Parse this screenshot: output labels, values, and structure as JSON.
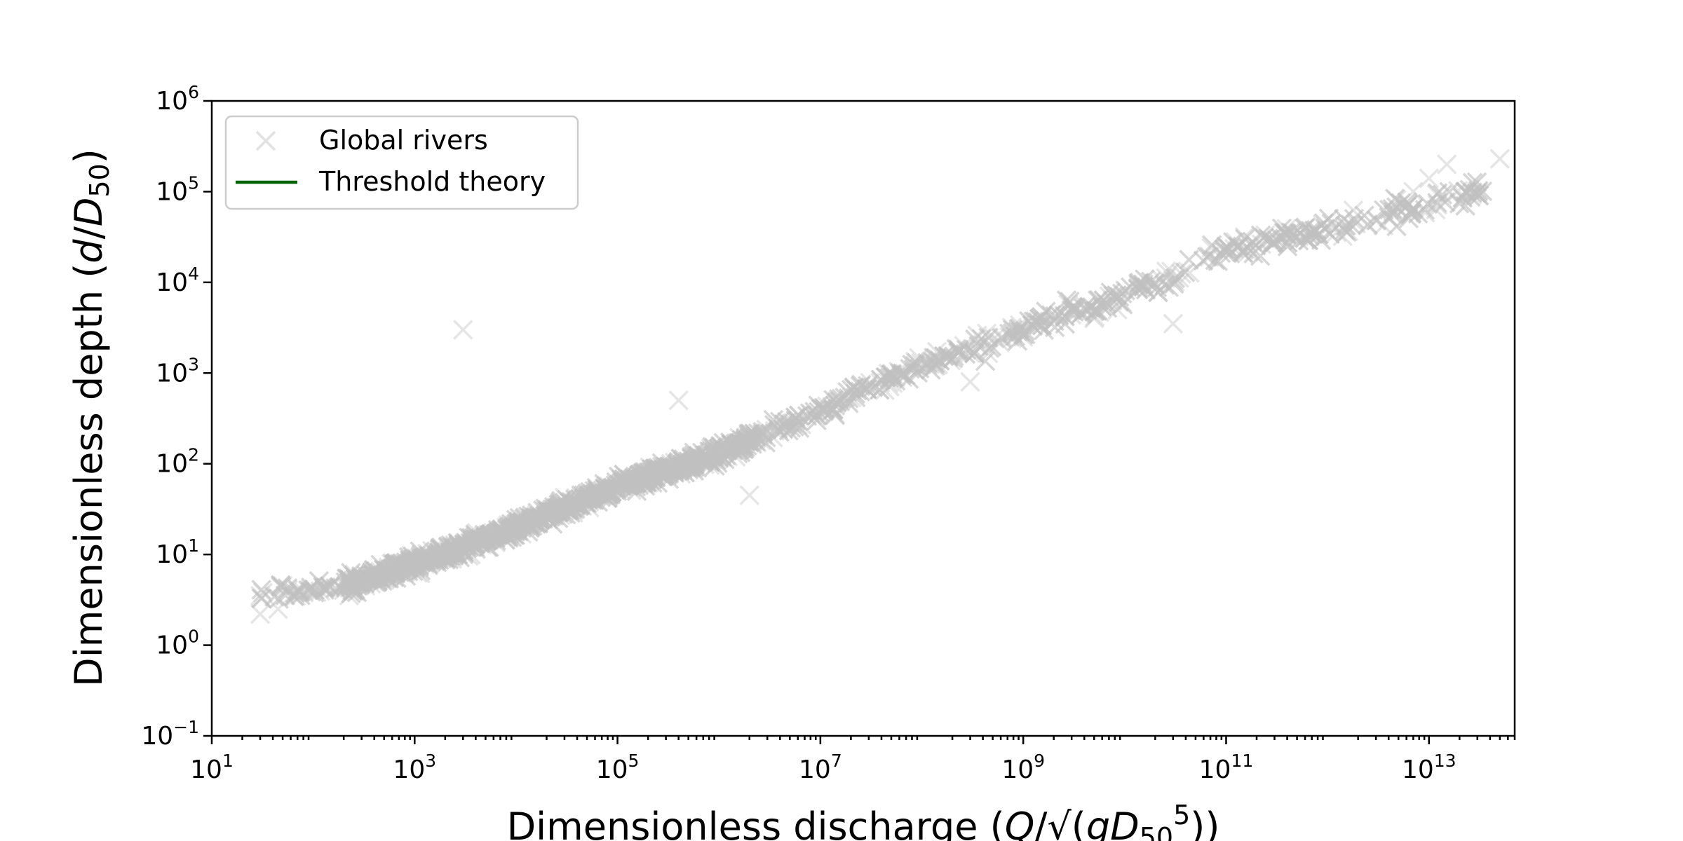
{
  "chart_data": {
    "type": "scatter",
    "x_scale": "log",
    "y_scale": "log",
    "xlim": [
      10,
      70000000000000
    ],
    "ylim": [
      0.1,
      1000000
    ],
    "x_ticks": [
      {
        "base": "10",
        "exp": "1"
      },
      {
        "base": "10",
        "exp": "3"
      },
      {
        "base": "10",
        "exp": "5"
      },
      {
        "base": "10",
        "exp": "7"
      },
      {
        "base": "10",
        "exp": "9"
      },
      {
        "base": "10",
        "exp": "11"
      },
      {
        "base": "10",
        "exp": "13"
      }
    ],
    "y_ticks": [
      {
        "base": "10",
        "exp": "−1"
      },
      {
        "base": "10",
        "exp": "0"
      },
      {
        "base": "10",
        "exp": "1"
      },
      {
        "base": "10",
        "exp": "2"
      },
      {
        "base": "10",
        "exp": "3"
      },
      {
        "base": "10",
        "exp": "4"
      },
      {
        "base": "10",
        "exp": "5"
      },
      {
        "base": "10",
        "exp": "6"
      }
    ],
    "xlabel": "Dimensionless discharge (Q/√(gD₅₀⁵))",
    "ylabel": "Dimensionless depth (d/D₅₀)",
    "grid": false,
    "legend_position": "top-left",
    "legend": [
      {
        "label": "Global rivers",
        "marker": "x",
        "color": "#c0c0c0"
      },
      {
        "label": "Threshold theory",
        "marker": "line",
        "color": "#006400"
      }
    ],
    "series": [
      {
        "name": "Global rivers",
        "color": "#c0c0c0",
        "trend": [
          {
            "x": 30,
            "y": 3.5
          },
          {
            "x": 100,
            "y": 4
          },
          {
            "x": 300,
            "y": 5
          },
          {
            "x": 1000,
            "y": 8
          },
          {
            "x": 3000,
            "y": 12
          },
          {
            "x": 10000,
            "y": 20
          },
          {
            "x": 30000,
            "y": 33
          },
          {
            "x": 100000,
            "y": 55
          },
          {
            "x": 300000,
            "y": 85
          },
          {
            "x": 1000000,
            "y": 130
          },
          {
            "x": 3000000,
            "y": 220
          },
          {
            "x": 10000000,
            "y": 380
          },
          {
            "x": 30000000,
            "y": 700
          },
          {
            "x": 100000000,
            "y": 1200
          },
          {
            "x": 300000000,
            "y": 1900
          },
          {
            "x": 1000000000,
            "y": 3000
          },
          {
            "x": 3000000000,
            "y": 4500
          },
          {
            "x": 10000000000,
            "y": 7000
          },
          {
            "x": 30000000000,
            "y": 12000
          },
          {
            "x": 100000000000,
            "y": 22000
          },
          {
            "x": 300000000000,
            "y": 30000
          },
          {
            "x": 1000000000000,
            "y": 40000
          },
          {
            "x": 3000000000000,
            "y": 50000
          },
          {
            "x": 10000000000000,
            "y": 70000
          },
          {
            "x": 40000000000000,
            "y": 110000
          }
        ],
        "points": [
          {
            "x": 30,
            "y": 2.2
          },
          {
            "x": 45,
            "y": 2.5
          },
          {
            "x": 30,
            "y": 3.5
          },
          {
            "x": 50,
            "y": 4.5
          },
          {
            "x": 3000,
            "y": 3000
          },
          {
            "x": 400000,
            "y": 500
          },
          {
            "x": 2000000,
            "y": 45
          },
          {
            "x": 100000000000,
            "y": 25000
          },
          {
            "x": 7000000000000,
            "y": 100000
          },
          {
            "x": 10000000000000,
            "y": 140000
          },
          {
            "x": 15000000000000,
            "y": 200000
          },
          {
            "x": 50000000000000,
            "y": 230000
          },
          {
            "x": 5000000000,
            "y": 4000
          },
          {
            "x": 1000000000,
            "y": 2500
          },
          {
            "x": 300000000,
            "y": 800
          },
          {
            "x": 30000000000,
            "y": 3500
          }
        ]
      },
      {
        "name": "Threshold theory",
        "color": "#006400",
        "points": []
      }
    ]
  }
}
